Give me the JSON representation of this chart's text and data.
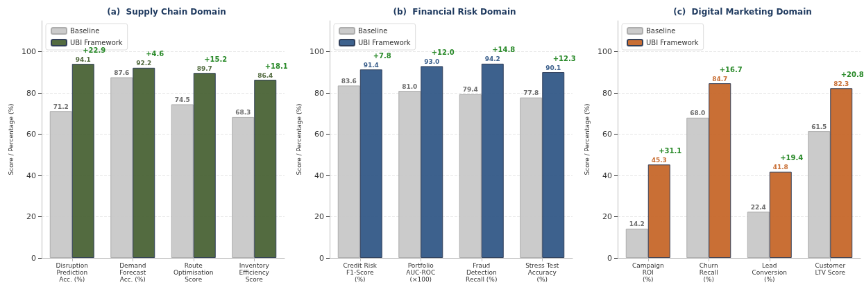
{
  "chart_data": [
    {
      "type": "bar",
      "title": "(a)  Supply Chain Domain",
      "ylabel": "Score / Percentage (%)",
      "categories": [
        "Disruption\nPrediction\nAcc. (%)",
        "Demand\nForecast\nAcc. (%)",
        "Route\nOptimisation\nScore",
        "Inventory\nEfficiency\nScore"
      ],
      "series": [
        {
          "name": "Baseline",
          "color": "#c8c8c8",
          "values": [
            71.2,
            87.6,
            74.5,
            68.3
          ],
          "value_labels": [
            "71.2",
            "87.6",
            "74.5",
            "68.3"
          ]
        },
        {
          "name": "UBI Framework",
          "color": "#4a6336",
          "values": [
            94.1,
            92.2,
            89.7,
            86.4
          ],
          "value_labels": [
            "94.1",
            "92.2",
            "89.7",
            "86.4"
          ]
        }
      ],
      "ylim": [
        0,
        115
      ],
      "yticks": [
        0,
        20,
        40,
        60,
        80,
        100
      ],
      "grid": "y",
      "legend": "top left",
      "annotations": [
        {
          "text": "+22.9",
          "x": "Disruption\nPrediction\nAcc. (%)",
          "y": 94.1
        },
        {
          "text": "+4.6",
          "x": "Demand\nForecast\nAcc. (%)",
          "y": 92.2
        },
        {
          "text": "+15.2",
          "x": "Route\nOptimisation\nScore",
          "y": 89.7
        },
        {
          "text": "+18.1",
          "x": "Inventory\nEfficiency\nScore",
          "y": 86.4
        }
      ]
    },
    {
      "type": "bar",
      "title": "(b)  Financial Risk Domain",
      "ylabel": "Score / Percentage (%)",
      "categories": [
        "Credit Risk\nF1-Score\n(%)",
        "Portfolio\nAUC-ROC\n(×100)",
        "Fraud\nDetection\nRecall (%)",
        "Stress Test\nAccuracy\n(%)"
      ],
      "series": [
        {
          "name": "Baseline",
          "color": "#c8c8c8",
          "values": [
            83.6,
            81.0,
            79.4,
            77.8
          ],
          "value_labels": [
            "83.6",
            "81.0",
            "79.4",
            "77.8"
          ]
        },
        {
          "name": "UBI Framework",
          "color": "#335887",
          "values": [
            91.4,
            93.0,
            94.2,
            90.1
          ],
          "value_labels": [
            "91.4",
            "93.0",
            "94.2",
            "90.1"
          ]
        }
      ],
      "ylim": [
        0,
        115
      ],
      "yticks": [
        0,
        20,
        40,
        60,
        80,
        100
      ],
      "grid": "y",
      "legend": "top left",
      "annotations": [
        {
          "text": "+7.8",
          "x": "Credit Risk\nF1-Score\n(%)",
          "y": 91.4
        },
        {
          "text": "+12.0",
          "x": "Portfolio\nAUC-ROC\n(×100)",
          "y": 93.0
        },
        {
          "text": "+14.8",
          "x": "Fraud\nDetection\nRecall (%)",
          "y": 94.2
        },
        {
          "text": "+12.3",
          "x": "Stress Test\nAccuracy\n(%)",
          "y": 90.1
        }
      ]
    },
    {
      "type": "bar",
      "title": "(c)  Digital Marketing Domain",
      "ylabel": "Score / Percentage (%)",
      "categories": [
        "Campaign\nROI\n(%)",
        "Churn\nRecall\n(%)",
        "Lead\nConversion\n(%)",
        "Customer\nLTV Score"
      ],
      "series": [
        {
          "name": "Baseline",
          "color": "#c8c8c8",
          "values": [
            14.2,
            68.0,
            22.4,
            61.5
          ],
          "value_labels": [
            "14.2",
            "68.0",
            "22.4",
            "61.5"
          ]
        },
        {
          "name": "UBI Framework",
          "color": "#c6672a",
          "values": [
            45.3,
            84.7,
            41.8,
            82.3
          ],
          "value_labels": [
            "45.3",
            "84.7",
            "41.8",
            "82.3"
          ]
        }
      ],
      "ylim": [
        0,
        115
      ],
      "yticks": [
        0,
        20,
        40,
        60,
        80,
        100
      ],
      "grid": "y",
      "legend": "top left",
      "annotations": [
        {
          "text": "+31.1",
          "x": "Campaign\nROI\n(%)",
          "y": 45.3
        },
        {
          "text": "+16.7",
          "x": "Churn\nRecall\n(%)",
          "y": 84.7
        },
        {
          "text": "+19.4",
          "x": "Lead\nConversion\n(%)",
          "y": 41.8
        },
        {
          "text": "+20.8",
          "x": "Customer\nLTV Score",
          "y": 82.3
        }
      ]
    }
  ]
}
